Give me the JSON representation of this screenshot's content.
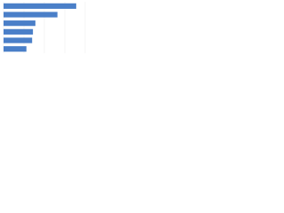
{
  "chart_data": {
    "type": "bar",
    "orientation": "horizontal",
    "values": [
      89,
      66,
      39,
      36,
      35,
      28
    ],
    "color": "#4a7fc8",
    "xlim": [
      0,
      100
    ],
    "xticks": [
      0,
      25,
      50,
      75,
      100
    ],
    "grid": true
  }
}
